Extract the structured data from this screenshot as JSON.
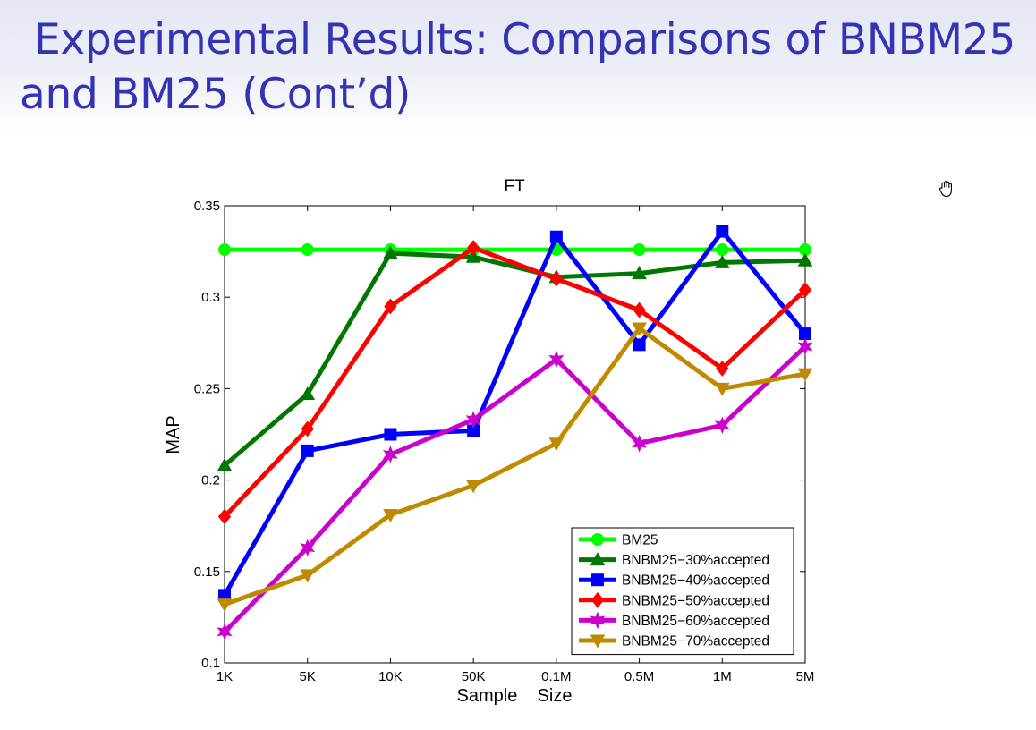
{
  "slide": {
    "title": "Experimental Results: Comparisons of BNBM25 and BM25 (Cont’d)"
  },
  "cursor": {
    "icon": "hand-grab-icon"
  },
  "colors": {
    "title": "#3333b3",
    "BM25": "#00ff00",
    "BNBM25-30%accepted": "#007700",
    "BNBM25-40%accepted": "#0000ff",
    "BNBM25-50%accepted": "#ff0000",
    "BNBM25-60%accepted": "#cc00cc",
    "BNBM25-70%accepted": "#bf8a00"
  },
  "chart_data": {
    "type": "line",
    "title": "FT",
    "xlabel": "Sample    Size",
    "ylabel": "MAP",
    "categories": [
      "1K",
      "5K",
      "10K",
      "50K",
      "0.1M",
      "0.5M",
      "1M",
      "5M"
    ],
    "ylim": [
      0.1,
      0.35
    ],
    "yticks": [
      "0.1",
      "0.15",
      "0.2",
      "0.25",
      "0.3",
      "0.35"
    ],
    "legend_position": "bottom-right",
    "grid": false,
    "series": [
      {
        "name": "BM25",
        "marker": "circle",
        "color": "#00ff00",
        "values": [
          0.326,
          0.326,
          0.326,
          0.326,
          0.326,
          0.326,
          0.326,
          0.326
        ]
      },
      {
        "name": "BNBM25−30%accepted",
        "marker": "triangle-up",
        "color": "#007700",
        "values": [
          0.208,
          0.247,
          0.324,
          0.322,
          0.311,
          0.313,
          0.319,
          0.32
        ]
      },
      {
        "name": "BNBM25−40%accepted",
        "marker": "square",
        "color": "#0000ff",
        "values": [
          0.137,
          0.216,
          0.225,
          0.227,
          0.333,
          0.274,
          0.336,
          0.28
        ]
      },
      {
        "name": "BNBM25−50%accepted",
        "marker": "diamond",
        "color": "#ff0000",
        "values": [
          0.18,
          0.228,
          0.295,
          0.327,
          0.31,
          0.293,
          0.261,
          0.304
        ]
      },
      {
        "name": "BNBM25−60%accepted",
        "marker": "hexagram",
        "color": "#cc00cc",
        "values": [
          0.117,
          0.163,
          0.214,
          0.233,
          0.266,
          0.22,
          0.23,
          0.273
        ]
      },
      {
        "name": "BNBM25−70%accepted",
        "marker": "triangle-down",
        "color": "#bf8a00",
        "values": [
          0.132,
          0.148,
          0.181,
          0.197,
          0.22,
          0.283,
          0.25,
          0.258
        ]
      }
    ]
  }
}
